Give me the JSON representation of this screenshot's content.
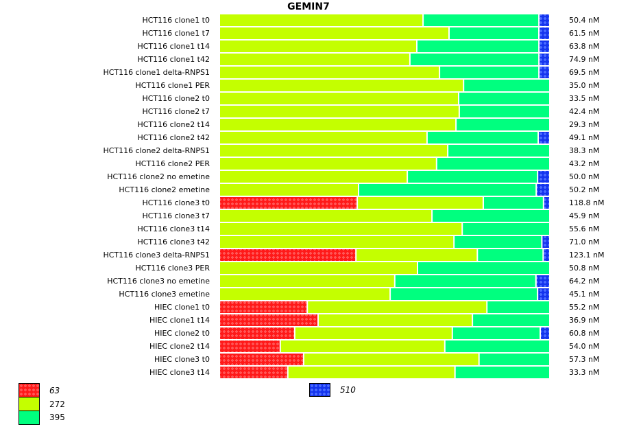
{
  "chart_data": {
    "type": "bar",
    "orientation": "horizontal-stacked-100",
    "title": "GEMIN7",
    "xlabel": "",
    "ylabel": "",
    "unit": "percent of bar",
    "categories": [
      "HCT116 clone1 t0",
      "HCT116 clone1 t7",
      "HCT116 clone1 t14",
      "HCT116 clone1 t42",
      "HCT116 clone1 delta-RNPS1",
      "HCT116 clone1 PER",
      "HCT116 clone2 t0",
      "HCT116 clone2 t7",
      "HCT116 clone2 t14",
      "HCT116 clone2 t42",
      "HCT116 clone2 delta-RNPS1",
      "HCT116 clone2 PER",
      "HCT116 clone2 no emetine",
      "HCT116 clone2 emetine",
      "HCT116 clone3 t0",
      "HCT116 clone3 t7",
      "HCT116 clone3 t14",
      "HCT116 clone3 t42",
      "HCT116 clone3 delta-RNPS1",
      "HCT116 clone3 PER",
      "HCT116 clone3 no emetine",
      "HCT116 clone3 emetine",
      "HIEC clone1 t0",
      "HIEC clone1 t14",
      "HIEC clone2 t0",
      "HIEC clone2 t14",
      "HIEC clone3 t0",
      "HIEC clone3 t14"
    ],
    "row_values": [
      "50.4 nM",
      "61.5 nM",
      "63.8 nM",
      "74.9 nM",
      "69.5 nM",
      "35.0 nM",
      "33.5 nM",
      "42.4 nM",
      "29.3 nM",
      "49.1 nM",
      "38.3 nM",
      "43.2 nM",
      "50.0 nM",
      "50.2 nM",
      "118.8 nM",
      "45.9 nM",
      "55.6 nM",
      "71.0 nM",
      "123.1 nM",
      "50.8 nM",
      "64.2 nM",
      "45.1 nM",
      "55.2 nM",
      "36.9 nM",
      "60.8 nM",
      "54.0 nM",
      "57.3 nM",
      "33.3 nM"
    ],
    "series": [
      {
        "name": "63",
        "color": "#ff0000",
        "pattern": "hatched",
        "italic": true,
        "values": [
          0,
          0,
          0,
          0,
          0,
          0,
          0,
          0,
          0,
          0,
          0,
          0,
          0,
          0,
          41.9,
          0,
          0,
          0,
          41.5,
          0,
          0,
          0,
          26.7,
          30.0,
          22.9,
          18.5,
          25.6,
          20.8
        ]
      },
      {
        "name": "272",
        "color": "#c4ff00",
        "pattern": "solid",
        "italic": false,
        "values": [
          61.9,
          69.8,
          60.0,
          57.9,
          66.9,
          74.2,
          72.7,
          72.9,
          71.9,
          63.1,
          69.4,
          66.0,
          57.1,
          42.3,
          38.3,
          64.6,
          73.8,
          71.3,
          36.9,
          60.2,
          53.3,
          51.9,
          54.6,
          46.9,
          47.9,
          50.0,
          53.3,
          50.8
        ]
      },
      {
        "name": "395",
        "color": "#00ff7f",
        "pattern": "solid",
        "italic": false,
        "values": [
          35.2,
          27.3,
          37.1,
          39.2,
          30.2,
          25.8,
          27.3,
          27.1,
          28.1,
          33.8,
          30.6,
          34.0,
          39.6,
          54.0,
          18.3,
          35.4,
          26.2,
          26.7,
          20.0,
          39.8,
          42.9,
          44.8,
          18.7,
          23.1,
          26.7,
          31.5,
          21.1,
          28.4
        ]
      },
      {
        "name": "510",
        "color": "#1a3fff",
        "pattern": "hatched",
        "italic": true,
        "values": [
          2.9,
          2.9,
          2.9,
          2.9,
          2.9,
          0,
          0,
          0,
          0,
          3.1,
          0,
          0,
          3.3,
          3.7,
          1.5,
          0,
          0,
          2.0,
          1.6,
          0,
          3.8,
          3.3,
          0,
          0,
          2.5,
          0,
          0,
          0
        ]
      }
    ],
    "xlim": [
      0,
      100
    ],
    "grid": false,
    "legend": "bottom"
  }
}
